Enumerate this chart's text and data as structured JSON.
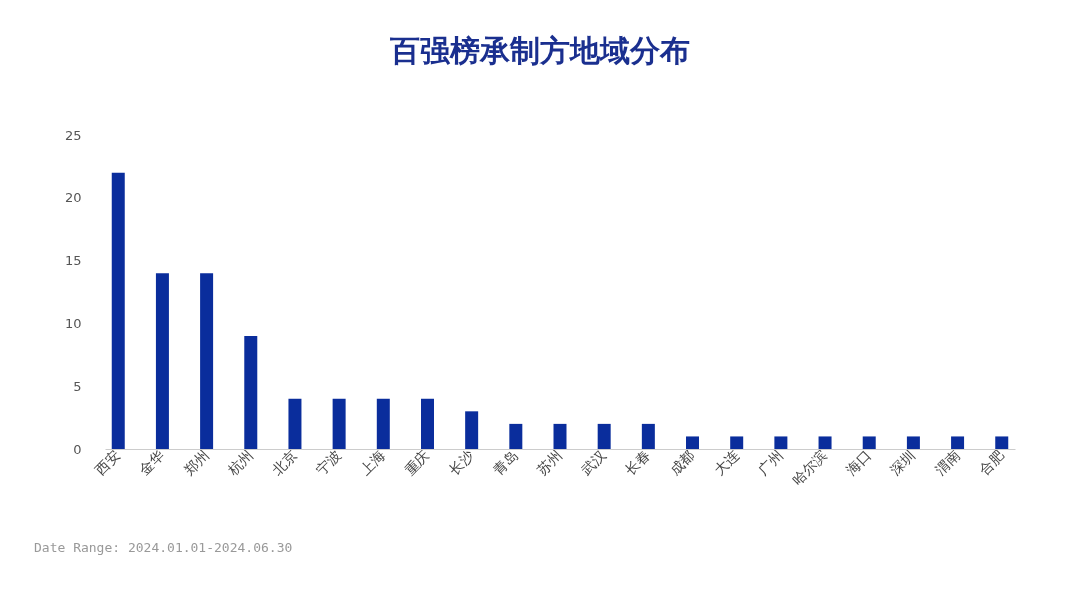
{
  "chart_data": {
    "type": "bar",
    "title": "百强榜承制方地域分布",
    "categories": [
      "西安",
      "金华",
      "郑州",
      "杭州",
      "北京",
      "宁波",
      "上海",
      "重庆",
      "长沙",
      "青岛",
      "苏州",
      "武汉",
      "长春",
      "成都",
      "大连",
      "广州",
      "哈尔滨",
      "海口",
      "深圳",
      "渭南",
      "合肥"
    ],
    "values": [
      22,
      14,
      14,
      9,
      4,
      4,
      4,
      4,
      3,
      2,
      2,
      2,
      2,
      1,
      1,
      1,
      1,
      1,
      1,
      1,
      1
    ],
    "color": "#0a2d9c",
    "ylim": [
      0,
      25
    ],
    "yticks": [
      0,
      5,
      10,
      15,
      20,
      25
    ],
    "grid": false,
    "annotations": [
      "Date Range: 2024.01.01-2024.06.30"
    ]
  }
}
